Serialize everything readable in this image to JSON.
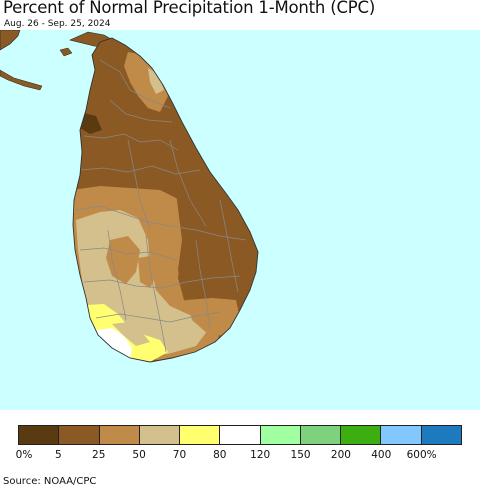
{
  "title": "Percent of Normal Precipitation 1-Month (CPC)",
  "subtitle": "Aug. 26 - Sep. 25, 2024",
  "source": "Source: NOAA/CPC",
  "colors": {
    "ocean": "#ccffff",
    "land_outside": "#8a5a26"
  },
  "legend": {
    "colors": [
      "#5a3a10",
      "#8b5a24",
      "#c08a48",
      "#d4c08c",
      "#ffff70",
      "#ffffff",
      "#a0ffa0",
      "#7ed27e",
      "#3cae12",
      "#82c8ff",
      "#1e7abe"
    ],
    "labels": [
      "0%",
      "5",
      "25",
      "50",
      "70",
      "80",
      "120",
      "150",
      "200",
      "400",
      "600%"
    ]
  }
}
